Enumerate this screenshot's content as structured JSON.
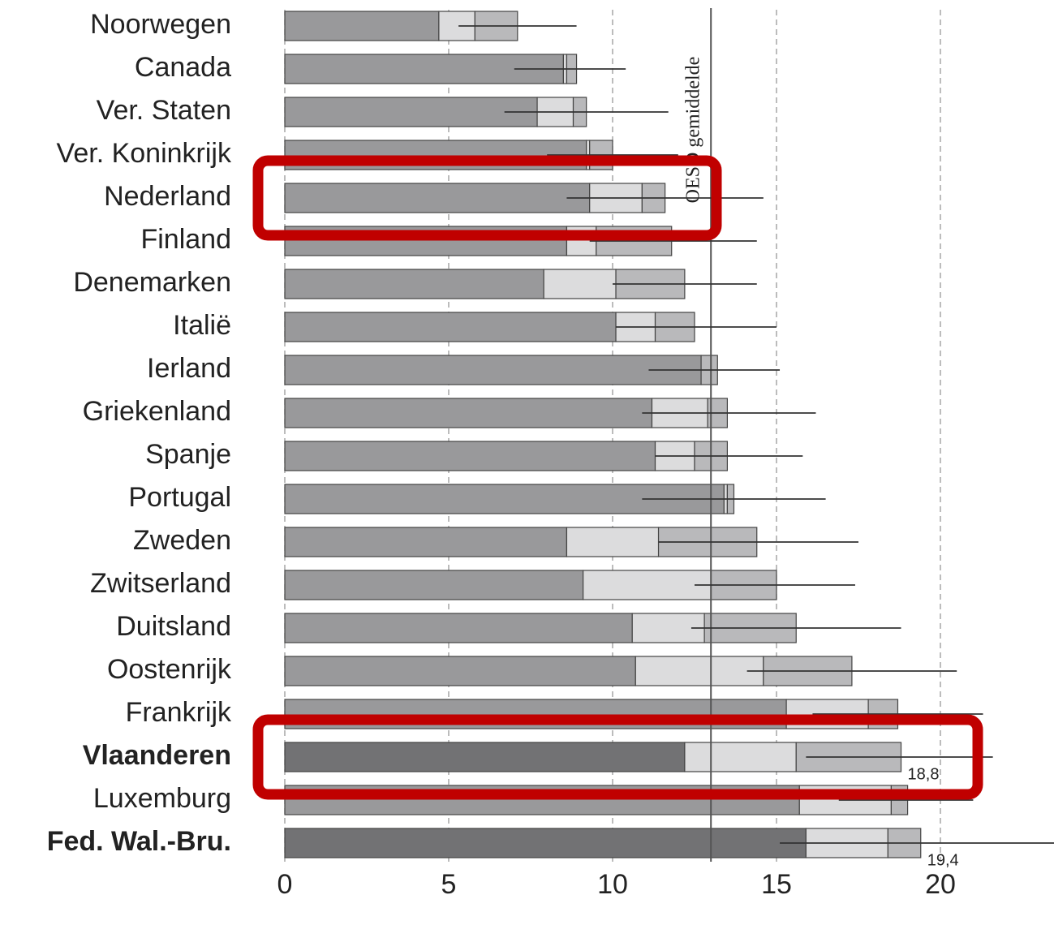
{
  "chart_data": {
    "type": "stacked-barh",
    "categories": [
      "Noorwegen",
      "Canada",
      "Ver. Staten",
      "Ver. Koninkrijk",
      "Nederland",
      "Finland",
      "Denemarken",
      "Italië",
      "Ierland",
      "Griekenland",
      "Spanje",
      "Portugal",
      "Zweden",
      "Zwitserland",
      "Duitsland",
      "Oostenrijk",
      "Frankrijk",
      "Vlaanderen",
      "Luxemburg",
      "Fed. Wal.-Bru."
    ],
    "series": [
      {
        "color": "#99999b",
        "values": [
          4.7,
          8.5,
          7.7,
          9.2,
          9.3,
          8.6,
          7.9,
          10.1,
          12.7,
          11.2,
          11.3,
          13.4,
          8.6,
          9.1,
          10.6,
          10.7,
          15.3,
          12.2,
          15.7,
          15.9
        ]
      },
      {
        "color": "#dcdcdd",
        "values": [
          1.1,
          0.1,
          1.1,
          0.1,
          1.6,
          0.9,
          2.2,
          1.2,
          0.0,
          1.7,
          1.2,
          0.1,
          2.8,
          3.9,
          2.2,
          3.9,
          2.5,
          3.4,
          2.8,
          2.5
        ]
      },
      {
        "color": "#b9b9bb",
        "values": [
          1.3,
          0.3,
          0.4,
          0.7,
          0.7,
          2.3,
          2.1,
          1.2,
          0.5,
          0.6,
          1.0,
          0.2,
          3.0,
          2.0,
          2.8,
          2.7,
          0.9,
          3.2,
          0.5,
          1.0
        ]
      }
    ],
    "error_ranges": [
      [
        5.3,
        8.9
      ],
      [
        7.0,
        10.4
      ],
      [
        6.7,
        11.7
      ],
      [
        8.0,
        12.0
      ],
      [
        8.6,
        14.6
      ],
      [
        9.3,
        14.4
      ],
      [
        10.0,
        14.4
      ],
      [
        10.1,
        15.0
      ],
      [
        11.1,
        15.1
      ],
      [
        10.9,
        16.2
      ],
      [
        11.3,
        15.8
      ],
      [
        10.9,
        16.5
      ],
      [
        11.4,
        17.5
      ],
      [
        12.5,
        17.4
      ],
      [
        12.4,
        18.8
      ],
      [
        14.1,
        20.5
      ],
      [
        16.1,
        21.3
      ],
      [
        15.9,
        21.6
      ],
      [
        16.9,
        21.0
      ],
      [
        15.1,
        23.5
      ]
    ],
    "bold_categories": [
      17,
      19
    ],
    "highlight_color": "#727274",
    "highlight_boxes": [
      4,
      17
    ],
    "reference": {
      "value": 13.0,
      "label": "OESO gemiddelde"
    },
    "annotations": [
      {
        "category": 17,
        "value": 18.8,
        "label": "18,8"
      },
      {
        "category": 19,
        "value": 19.4,
        "label": "19,4"
      }
    ],
    "xlim": [
      0,
      23.5
    ],
    "xticks": [
      0,
      5,
      10,
      15,
      20
    ],
    "grid": true
  }
}
